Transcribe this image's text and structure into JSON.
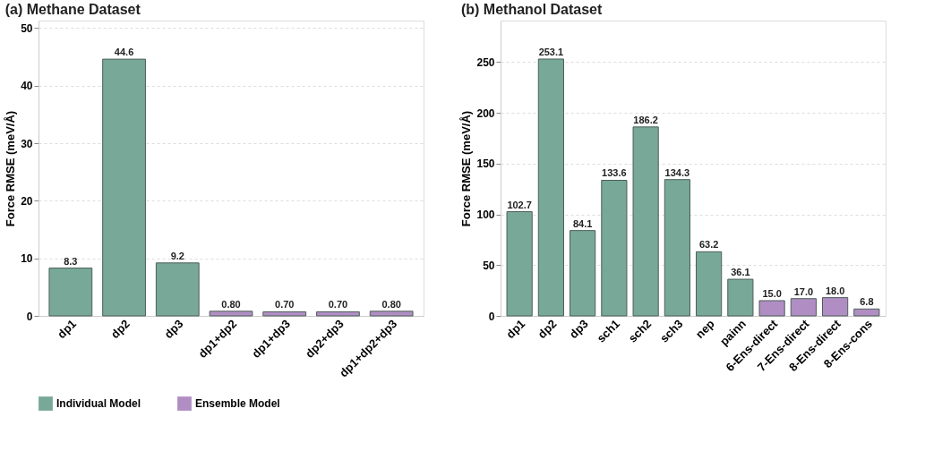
{
  "chart_data": [
    {
      "type": "bar",
      "title": "(a) Methane Dataset",
      "ylabel": "Force RMSE (meV/Å)",
      "categories": [
        "dp1",
        "dp2",
        "dp3",
        "dp1+dp2",
        "dp1+dp3",
        "dp2+dp3",
        "dp1+dp2+dp3"
      ],
      "series": [
        {
          "name": "Individual Model",
          "color": "#78a898",
          "values": [
            8.3,
            44.6,
            9.2,
            null,
            null,
            null,
            null
          ],
          "value_labels": [
            "8.3",
            "44.6",
            "9.2",
            null,
            null,
            null,
            null
          ]
        },
        {
          "name": "Ensemble Model",
          "color": "#b08ec4",
          "values": [
            null,
            null,
            null,
            0.8,
            0.7,
            0.7,
            0.8
          ],
          "value_labels": [
            null,
            null,
            null,
            "0.80",
            "0.70",
            "0.70",
            "0.80"
          ]
        }
      ],
      "ylim": [
        0,
        51.3
      ],
      "yticks": [
        0,
        10,
        20,
        30,
        40,
        50
      ],
      "grid": "y",
      "legend": "bottom"
    },
    {
      "type": "bar",
      "title": "(b) Methanol Dataset",
      "ylabel": "Force RMSE (meV/Å)",
      "categories": [
        "dp1",
        "dp2",
        "dp3",
        "sch1",
        "sch2",
        "sch3",
        "nep",
        "painn",
        "6-Ens-direct",
        "7-Ens-direct",
        "8-Ens-direct",
        "8-Ens-cons"
      ],
      "series": [
        {
          "name": "Individual Model",
          "color": "#78a898",
          "values": [
            102.7,
            253.1,
            84.1,
            133.6,
            186.2,
            134.3,
            63.2,
            36.1,
            null,
            null,
            null,
            null
          ],
          "value_labels": [
            "102.7",
            "253.1",
            "84.1",
            "133.6",
            "186.2",
            "134.3",
            "63.2",
            "36.1",
            null,
            null,
            null,
            null
          ]
        },
        {
          "name": "Ensemble Model",
          "color": "#b08ec4",
          "values": [
            null,
            null,
            null,
            null,
            null,
            null,
            null,
            null,
            15.0,
            17.0,
            18.0,
            6.8
          ],
          "value_labels": [
            null,
            null,
            null,
            null,
            null,
            null,
            null,
            null,
            "15.0",
            "17.0",
            "18.0",
            "6.8"
          ]
        }
      ],
      "ylim": [
        0,
        291
      ],
      "yticks": [
        0,
        50,
        100,
        150,
        200,
        250
      ],
      "grid": "y",
      "legend": "bottom"
    }
  ]
}
